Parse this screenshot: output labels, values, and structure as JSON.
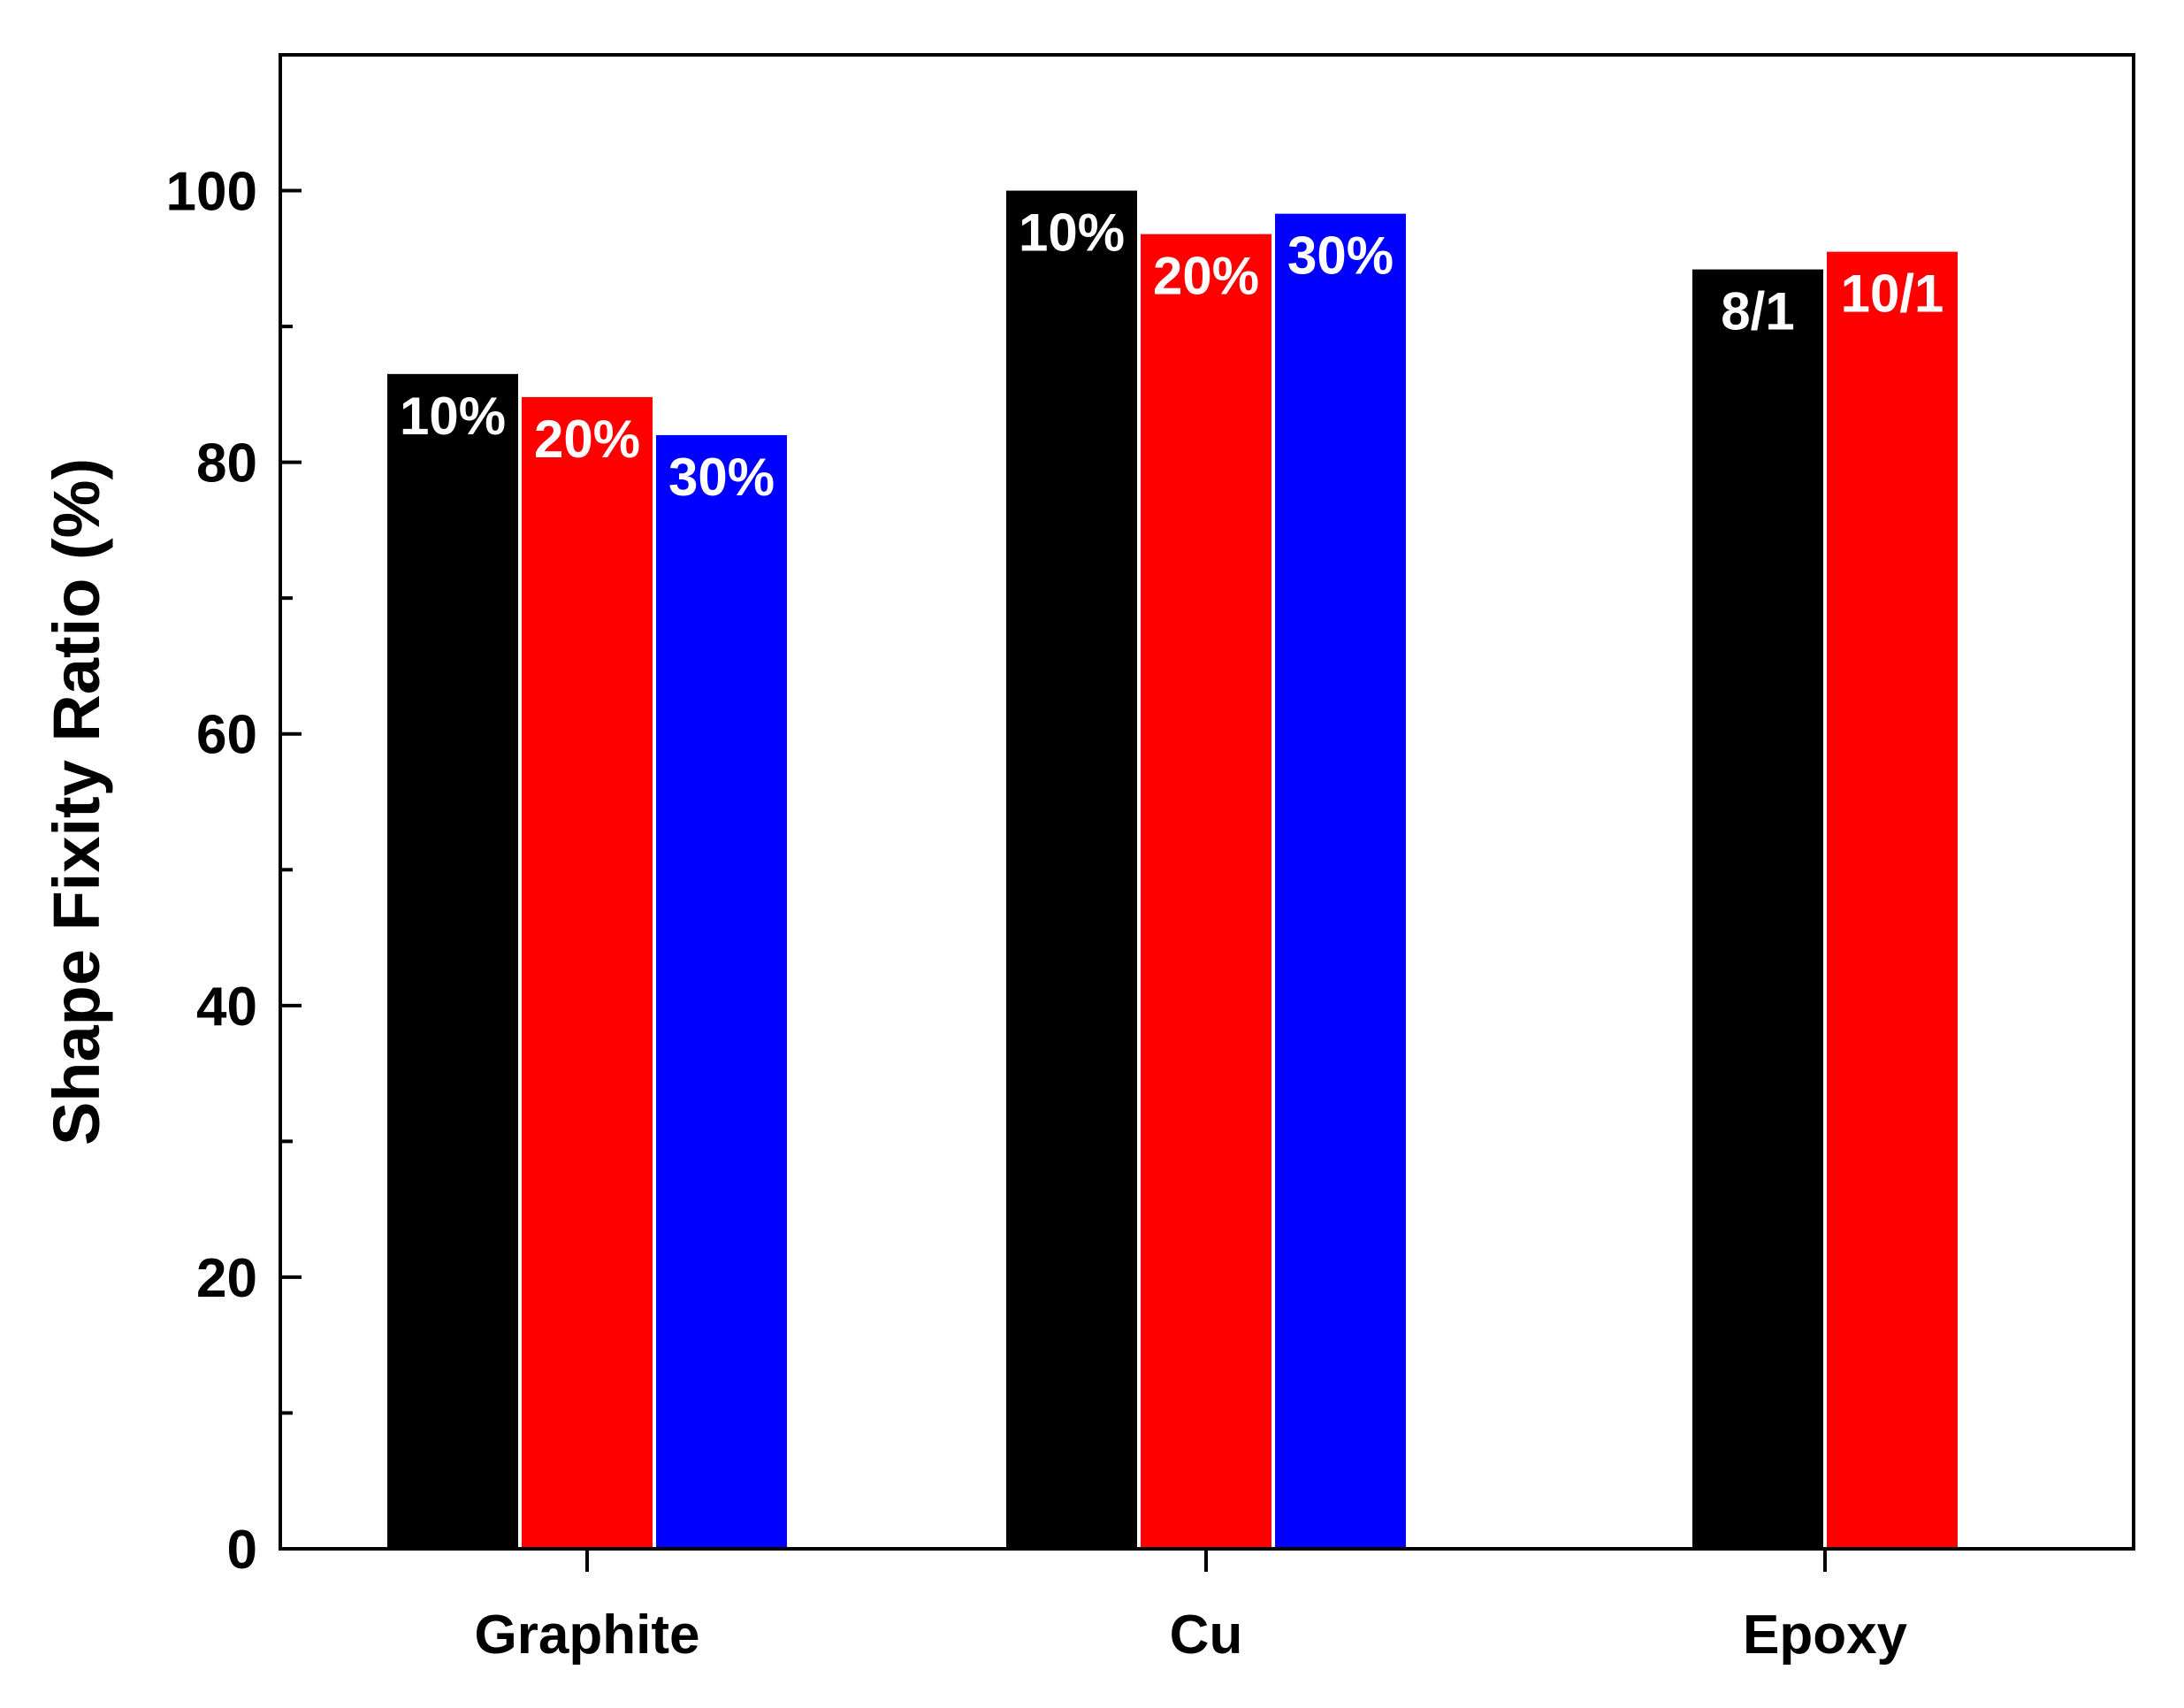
{
  "chart_data": {
    "type": "bar",
    "categories": [
      "Graphite",
      "Cu",
      "Epoxy"
    ],
    "ylabel": "Shape Fixity Ratio (%)",
    "xlabel": "",
    "title": "",
    "ylim": [
      0,
      110
    ],
    "yticks": [
      0,
      20,
      40,
      60,
      80,
      100
    ],
    "y_minor_step": 10,
    "grid": false,
    "groups": [
      {
        "category": "Graphite",
        "bars": [
          {
            "label": "10%",
            "value": 86.5,
            "color": "#000000"
          },
          {
            "label": "20%",
            "value": 84.8,
            "color": "#ff0000"
          },
          {
            "label": "30%",
            "value": 82.0,
            "color": "#0000ff"
          }
        ]
      },
      {
        "category": "Cu",
        "bars": [
          {
            "label": "10%",
            "value": 100.0,
            "color": "#000000"
          },
          {
            "label": "20%",
            "value": 96.8,
            "color": "#ff0000"
          },
          {
            "label": "30%",
            "value": 98.3,
            "color": "#0000ff"
          }
        ]
      },
      {
        "category": "Epoxy",
        "bars": [
          {
            "label": "8/1",
            "value": 94.2,
            "color": "#000000"
          },
          {
            "label": "10/1",
            "value": 95.5,
            "color": "#ff0000"
          }
        ]
      }
    ]
  }
}
